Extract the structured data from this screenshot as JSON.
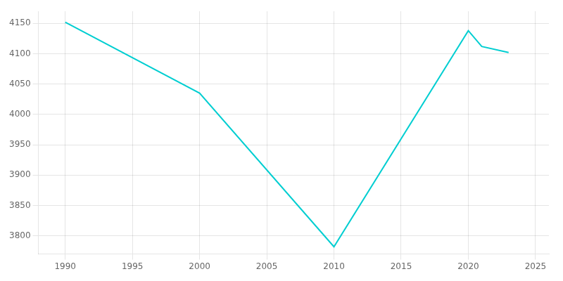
{
  "chart_data": {
    "type": "line",
    "x": [
      1990,
      2000,
      2010,
      2020,
      2021,
      2023
    ],
    "values": [
      4152,
      4035,
      3782,
      4138,
      4112,
      4102
    ],
    "color": "#00CED1",
    "xlim": [
      1988,
      2026
    ],
    "ylim": [
      3770,
      4170
    ],
    "xticks": [
      1990,
      1995,
      2000,
      2005,
      2010,
      2015,
      2020,
      2025
    ],
    "yticks": [
      3800,
      3850,
      3900,
      3950,
      4000,
      4050,
      4100,
      4150
    ],
    "grid": true
  }
}
